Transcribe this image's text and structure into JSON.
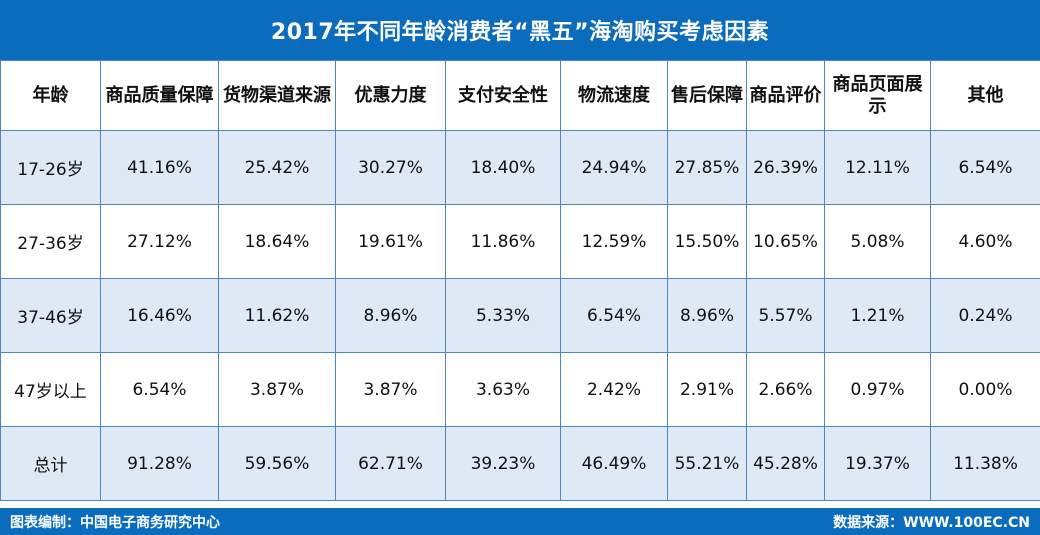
{
  "chart_data": {
    "type": "table",
    "title": "2017年不同年龄消费者“黑五”海淘购买考虑因素",
    "columns": [
      "年龄",
      "商品质量保障",
      "货物渠道来源",
      "优惠力度",
      "支付安全性",
      "物流速度",
      "售后保障",
      "商品评价",
      "商品页面展示",
      "其他"
    ],
    "rows": [
      [
        "17-26岁",
        "41.16%",
        "25.42%",
        "30.27%",
        "18.40%",
        "24.94%",
        "27.85%",
        "26.39%",
        "12.11%",
        "6.54%"
      ],
      [
        "27-36岁",
        "27.12%",
        "18.64%",
        "19.61%",
        "11.86%",
        "12.59%",
        "15.50%",
        "10.65%",
        "5.08%",
        "4.60%"
      ],
      [
        "37-46岁",
        "16.46%",
        "11.62%",
        "8.96%",
        "5.33%",
        "6.54%",
        "8.96%",
        "5.57%",
        "1.21%",
        "0.24%"
      ],
      [
        "47岁以上",
        "6.54%",
        "3.87%",
        "3.87%",
        "3.63%",
        "2.42%",
        "2.91%",
        "2.66%",
        "0.97%",
        "0.00%"
      ],
      [
        "总计",
        "91.28%",
        "59.56%",
        "62.71%",
        "39.23%",
        "46.49%",
        "55.21%",
        "45.28%",
        "19.37%",
        "11.38%"
      ]
    ]
  },
  "footer": {
    "left": "图表编制：中国电子商务研究中心",
    "right": "数据来源：WWW.100EC.CN"
  },
  "colors": {
    "header_blue": "#0b6bbd",
    "row_stripe": "#dfe8f5",
    "border": "#4e86c2"
  }
}
